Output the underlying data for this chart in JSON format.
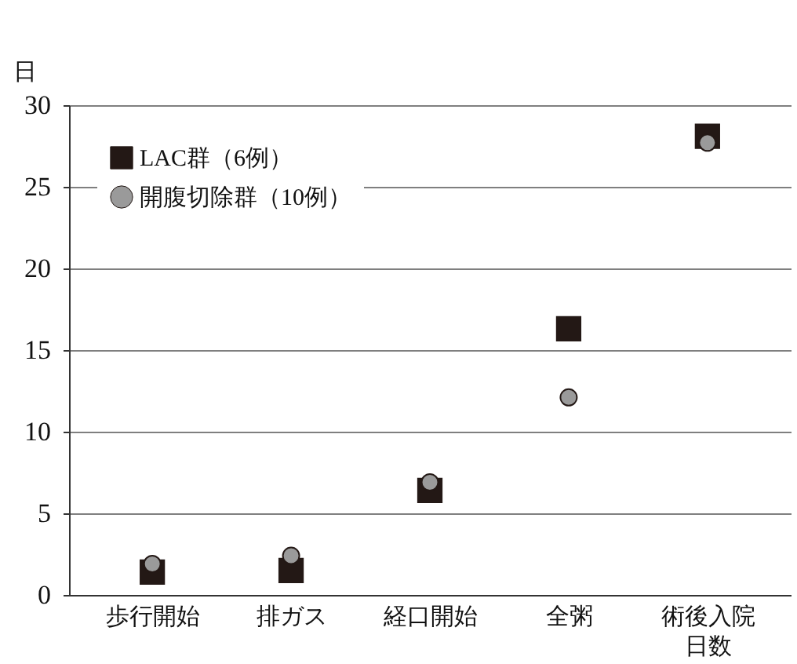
{
  "chart_data": {
    "type": "scatter",
    "ylabel": "日",
    "categories": [
      "歩行開始",
      "排ガス",
      "経口開始",
      "全粥",
      "術後入院日数"
    ],
    "series": [
      {
        "name": "LAC群（6例）",
        "color": "#231815",
        "marker": "square",
        "values": [
          1.4,
          1.5,
          6.4,
          16.3,
          28.1
        ]
      },
      {
        "name": "開腹切除群（10例）",
        "color": "#9a9a9a",
        "marker": "circle",
        "values": [
          1.9,
          2.4,
          6.9,
          12.1,
          27.7
        ]
      }
    ],
    "ylim": [
      0,
      30
    ],
    "yticks": [
      0,
      5,
      10,
      15,
      20,
      25,
      30
    ],
    "grid": "y",
    "legend": "top left"
  }
}
